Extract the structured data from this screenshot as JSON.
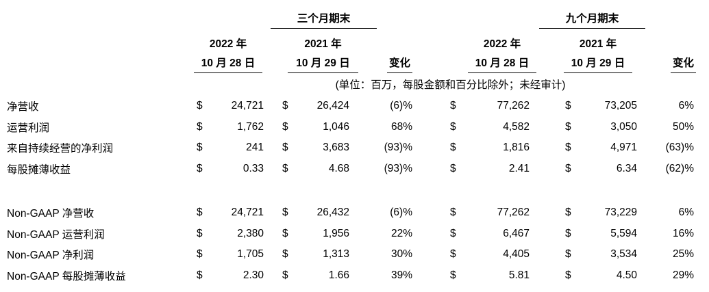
{
  "page": {
    "background": "#ffffff",
    "text_color": "#000000"
  },
  "table": {
    "currency_symbol": "$",
    "periods": {
      "three_months": {
        "title": "三个月期末",
        "year_2022": "2022 年",
        "date_2022": "10 月 28 日",
        "year_2021": "2021 年",
        "date_2021": "10 月 29 日",
        "change_label": "变化"
      },
      "nine_months": {
        "title": "九个月期末",
        "year_2022": "2022 年",
        "date_2022": "10 月 28 日",
        "year_2021": "2021 年",
        "date_2021": "10 月 29 日",
        "change_label": "变化"
      }
    },
    "note": "(单位：百万，每股金额和百分比除外；未经审计)",
    "gaap_rows": [
      {
        "label": "净营收",
        "tm_2022": "24,721",
        "tm_2021": "26,424",
        "tm_change": "(6)%",
        "nm_2022": "77,262",
        "nm_2021": "73,205",
        "nm_change": "6%"
      },
      {
        "label": "运营利润",
        "tm_2022": "1,762",
        "tm_2021": "1,046",
        "tm_change": "68%",
        "nm_2022": "4,582",
        "nm_2021": "3,050",
        "nm_change": "50%"
      },
      {
        "label": "来自持续经营的净利润",
        "tm_2022": "241",
        "tm_2021": "3,683",
        "tm_change": "(93)%",
        "nm_2022": "1,816",
        "nm_2021": "4,971",
        "nm_change": "(63)%"
      },
      {
        "label": "每股摊薄收益",
        "tm_2022": "0.33",
        "tm_2021": "4.68",
        "tm_change": "(93)%",
        "nm_2022": "2.41",
        "nm_2021": "6.34",
        "nm_change": "(62)%"
      }
    ],
    "non_gaap_rows": [
      {
        "label": "Non-GAAP 净营收",
        "tm_2022": "24,721",
        "tm_2021": "26,432",
        "tm_change": "(6)%",
        "nm_2022": "77,262",
        "nm_2021": "73,229",
        "nm_change": "6%"
      },
      {
        "label": "Non-GAAP 运营利润",
        "tm_2022": "2,380",
        "tm_2021": "1,956",
        "tm_change": "22%",
        "nm_2022": "6,467",
        "nm_2021": "5,594",
        "nm_change": "16%"
      },
      {
        "label": "Non-GAAP 净利润",
        "tm_2022": "1,705",
        "tm_2021": "1,313",
        "tm_change": "30%",
        "nm_2022": "4,405",
        "nm_2021": "3,534",
        "nm_change": "25%"
      },
      {
        "label": "Non-GAAP 每股摊薄收益",
        "tm_2022": "2.30",
        "tm_2021": "1.66",
        "tm_change": "39%",
        "nm_2022": "5.81",
        "nm_2021": "4.50",
        "nm_change": "29%"
      }
    ]
  }
}
